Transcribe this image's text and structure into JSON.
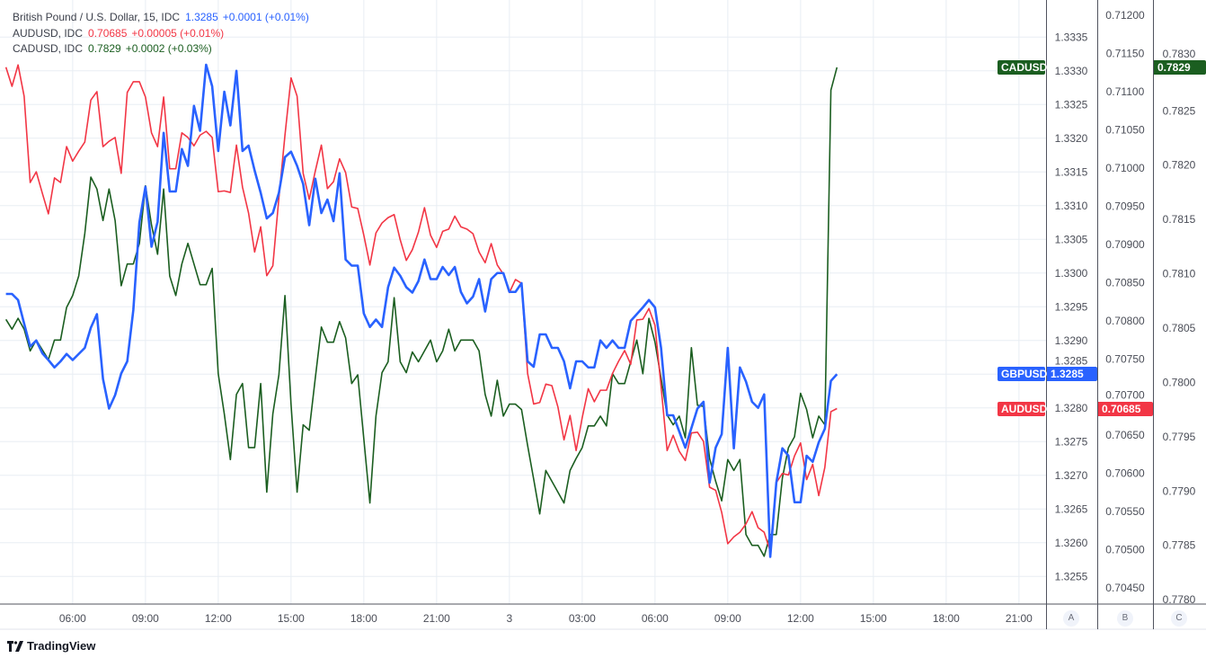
{
  "legend": [
    {
      "name": "British Pound / U.S. Dollar, 15, IDC",
      "value": "1.3285",
      "change": "+0.0001 (+0.01%)",
      "color": "#2962ff"
    },
    {
      "name": "AUDUSD, IDC",
      "value": "0.70685",
      "change": "+0.00005 (+0.01%)",
      "color": "#f23645"
    },
    {
      "name": "CADUSD, IDC",
      "value": "0.7829",
      "change": "+0.0002 (+0.03%)",
      "color": "#1b5e20"
    }
  ],
  "scale_buttons": [
    "A",
    "B",
    "C"
  ],
  "branding": "TradingView",
  "chart_data": {
    "type": "line",
    "interval_minutes": 15,
    "x_start": "2 03:15",
    "xlim": [
      "2 03:15",
      "3 22:00"
    ],
    "grid": true,
    "x_ticks": [
      {
        "label": "06:00",
        "t": "2 06:00"
      },
      {
        "label": "09:00",
        "t": "2 09:00"
      },
      {
        "label": "12:00",
        "t": "2 12:00"
      },
      {
        "label": "15:00",
        "t": "2 15:00"
      },
      {
        "label": "18:00",
        "t": "2 18:00"
      },
      {
        "label": "21:00",
        "t": "2 21:00"
      },
      {
        "label": "3",
        "t": "3 00:00"
      },
      {
        "label": "03:00",
        "t": "3 03:00"
      },
      {
        "label": "06:00",
        "t": "3 06:00"
      },
      {
        "label": "09:00",
        "t": "3 09:00"
      },
      {
        "label": "12:00",
        "t": "3 12:00"
      },
      {
        "label": "15:00",
        "t": "3 15:00"
      },
      {
        "label": "18:00",
        "t": "3 18:00"
      },
      {
        "label": "21:00",
        "t": "3 21:00"
      }
    ],
    "scales": {
      "A": {
        "ylim": [
          1.32509,
          1.33405
        ],
        "ticks": [
          "1.3335",
          "1.3330",
          "1.3325",
          "1.3320",
          "1.3315",
          "1.3310",
          "1.3305",
          "1.3300",
          "1.3295",
          "1.3290",
          "1.3285",
          "1.3280",
          "1.3275",
          "1.3270",
          "1.3265",
          "1.3260",
          "1.3255"
        ]
      },
      "B": {
        "ylim": [
          0.70429,
          0.7122
        ],
        "ticks": [
          "0.71200",
          "0.71150",
          "0.71100",
          "0.71050",
          "0.71000",
          "0.70950",
          "0.70900",
          "0.70850",
          "0.70800",
          "0.70750",
          "0.70700",
          "0.70650",
          "0.70600",
          "0.70550",
          "0.70500",
          "0.70450"
        ]
      },
      "C": {
        "ylim": [
          0.77796,
          0.78352
        ],
        "ticks": [
          "0.7830",
          "0.7825",
          "0.7820",
          "0.7815",
          "0.7810",
          "0.7805",
          "0.7800",
          "0.7795",
          "0.7790",
          "0.7785",
          "0.7780"
        ]
      }
    },
    "series": [
      {
        "name": "CADUSD",
        "scale": "C",
        "color": "#1b5e20",
        "last": "0.7829",
        "values": [
          0.78058,
          0.78049,
          0.78059,
          0.78049,
          0.78029,
          0.78039,
          0.7803,
          0.78021,
          0.78039,
          0.78039,
          0.78069,
          0.7808,
          0.78098,
          0.78137,
          0.78189,
          0.78178,
          0.78149,
          0.78178,
          0.78149,
          0.78089,
          0.78109,
          0.78109,
          0.78128,
          0.78181,
          0.78145,
          0.78118,
          0.78178,
          0.78098,
          0.7808,
          0.78109,
          0.78128,
          0.78109,
          0.7809,
          0.7809,
          0.78105,
          0.78008,
          0.77971,
          0.77929,
          0.77989,
          0.77999,
          0.7794,
          0.7794,
          0.77999,
          0.77899,
          0.77971,
          0.78007,
          0.7808,
          0.7798,
          0.77899,
          0.77961,
          0.77956,
          0.78004,
          0.78051,
          0.78037,
          0.78037,
          0.78056,
          0.78041,
          0.77999,
          0.78007,
          0.77948,
          0.77889,
          0.77969,
          0.78009,
          0.78019,
          0.78078,
          0.78019,
          0.78009,
          0.78028,
          0.78019,
          0.78029,
          0.78039,
          0.78019,
          0.78029,
          0.78049,
          0.78029,
          0.78039,
          0.78039,
          0.78039,
          0.78029,
          0.77989,
          0.77969,
          0.78002,
          0.77969,
          0.7798,
          0.7798,
          0.77975,
          0.77942,
          0.77911,
          0.77879,
          0.77919,
          0.77909,
          0.77899,
          0.77889,
          0.77919,
          0.7793,
          0.7794,
          0.7796,
          0.7796,
          0.77969,
          0.7796,
          0.78008,
          0.77999,
          0.77999,
          0.78019,
          0.78039,
          0.78008,
          0.78059,
          0.78037,
          0.78004,
          0.7797,
          0.77961,
          0.77969,
          0.77949,
          0.78032,
          0.77979,
          0.77978,
          0.7793,
          0.77909,
          0.77891,
          0.77929,
          0.77919,
          0.77929,
          0.7786,
          0.7785,
          0.7785,
          0.7784,
          0.7786,
          0.7786,
          0.77912,
          0.7794,
          0.7795,
          0.7799,
          0.77975,
          0.77949,
          0.77969,
          0.77961,
          0.78269,
          0.7829
        ]
      },
      {
        "name": "AUDUSD",
        "scale": "B",
        "color": "#f23645",
        "last": "0.70685",
        "values": [
          0.71132,
          0.71107,
          0.71135,
          0.71094,
          0.70981,
          0.70995,
          0.70967,
          0.7094,
          0.70987,
          0.70981,
          0.71028,
          0.71009,
          0.71022,
          0.71034,
          0.71089,
          0.711,
          0.71028,
          0.71035,
          0.7104,
          0.70993,
          0.71099,
          0.71113,
          0.71113,
          0.71093,
          0.71046,
          0.71028,
          0.71093,
          0.70999,
          0.70999,
          0.71046,
          0.7104,
          0.71029,
          0.71043,
          0.71048,
          0.7104,
          0.70969,
          0.7097,
          0.70968,
          0.7103,
          0.70975,
          0.70941,
          0.7089,
          0.70923,
          0.70859,
          0.70872,
          0.70961,
          0.71043,
          0.71118,
          0.71094,
          0.70993,
          0.70959,
          0.70996,
          0.7103,
          0.70973,
          0.70982,
          0.71012,
          0.70994,
          0.70949,
          0.70947,
          0.70912,
          0.70873,
          0.70915,
          0.70928,
          0.70935,
          0.70939,
          0.70906,
          0.70879,
          0.70893,
          0.70916,
          0.70948,
          0.70912,
          0.70896,
          0.70917,
          0.7092,
          0.70937,
          0.70923,
          0.7092,
          0.70914,
          0.7089,
          0.70876,
          0.70901,
          0.70873,
          0.70861,
          0.70837,
          0.70854,
          0.70849,
          0.70731,
          0.70691,
          0.70693,
          0.70717,
          0.70715,
          0.70687,
          0.70644,
          0.70676,
          0.7063,
          0.70673,
          0.70711,
          0.70694,
          0.70709,
          0.70709,
          0.70731,
          0.70747,
          0.70761,
          0.70743,
          0.70801,
          0.70802,
          0.70816,
          0.70794,
          0.70714,
          0.7063,
          0.7065,
          0.70629,
          0.70617,
          0.70653,
          0.70654,
          0.70642,
          0.70582,
          0.70578,
          0.70549,
          0.70508,
          0.70517,
          0.70523,
          0.70534,
          0.7055,
          0.70529,
          0.70523,
          0.70498,
          0.70588,
          0.706,
          0.70598,
          0.70623,
          0.7064,
          0.70592,
          0.70612,
          0.70571,
          0.70608,
          0.70681,
          0.70685
        ]
      },
      {
        "name": "GBPUSD",
        "scale": "A",
        "color": "#2962ff",
        "last": "1.3285",
        "values": [
          1.32969,
          1.32969,
          1.3296,
          1.32925,
          1.32891,
          1.329,
          1.32881,
          1.32871,
          1.3286,
          1.32869,
          1.3288,
          1.32871,
          1.3288,
          1.32889,
          1.32919,
          1.32939,
          1.32843,
          1.32799,
          1.32819,
          1.32851,
          1.32869,
          1.32945,
          1.33075,
          1.33128,
          1.33039,
          1.33076,
          1.33208,
          1.33121,
          1.33121,
          1.33184,
          1.33159,
          1.33248,
          1.33211,
          1.33309,
          1.33277,
          1.33181,
          1.33269,
          1.33219,
          1.333,
          1.33181,
          1.33189,
          1.33152,
          1.33119,
          1.33081,
          1.33089,
          1.33119,
          1.33172,
          1.3318,
          1.33159,
          1.33132,
          1.33071,
          1.3314,
          1.33089,
          1.33109,
          1.33077,
          1.33148,
          1.3302,
          1.33011,
          1.33011,
          1.3294,
          1.3292,
          1.32931,
          1.3292,
          1.32979,
          1.33008,
          1.32996,
          1.32979,
          1.32971,
          1.32988,
          1.3302,
          1.32991,
          1.32991,
          1.33009,
          1.32997,
          1.33009,
          1.32972,
          1.32955,
          1.32965,
          1.32991,
          1.32943,
          1.32991,
          1.33,
          1.33,
          1.32972,
          1.32972,
          1.32985,
          1.32869,
          1.32861,
          1.32909,
          1.32909,
          1.32889,
          1.32889,
          1.32869,
          1.32829,
          1.32869,
          1.32869,
          1.3286,
          1.3286,
          1.329,
          1.32889,
          1.329,
          1.32889,
          1.32889,
          1.32929,
          1.32939,
          1.32949,
          1.3296,
          1.32949,
          1.32889,
          1.32789,
          1.32789,
          1.32765,
          1.32741,
          1.3277,
          1.32799,
          1.32809,
          1.32689,
          1.32741,
          1.32761,
          1.32889,
          1.3274,
          1.3286,
          1.32839,
          1.32809,
          1.328,
          1.3282,
          1.32579,
          1.32689,
          1.3274,
          1.32729,
          1.3266,
          1.3266,
          1.32729,
          1.3272,
          1.32749,
          1.32769,
          1.3284,
          1.3285
        ]
      }
    ]
  }
}
